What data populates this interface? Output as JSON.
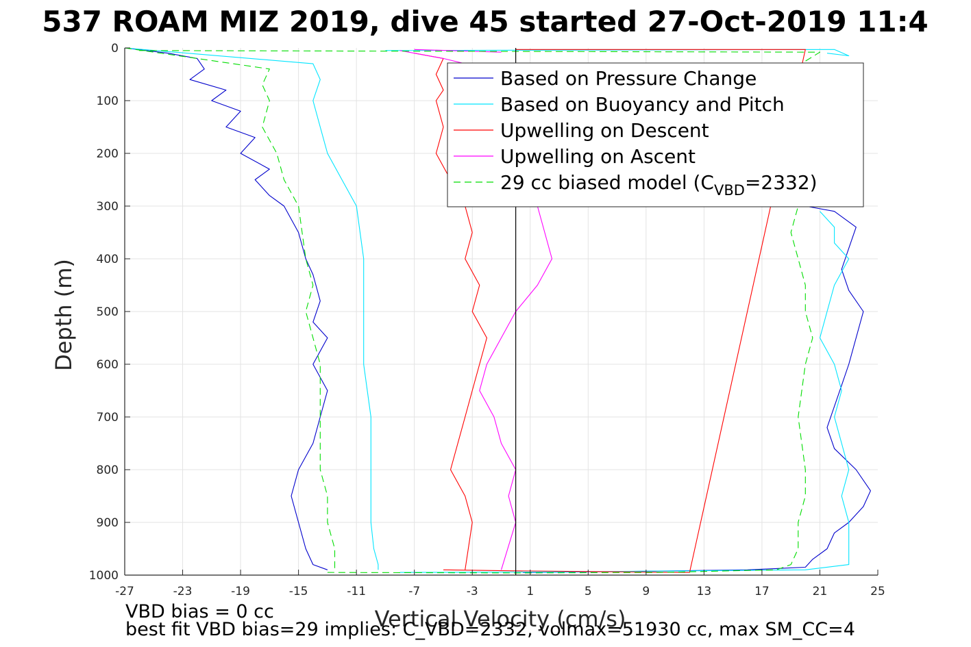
{
  "chart_data": {
    "type": "line",
    "title": "537 ROAM MIZ 2019, dive 45 started 27-Oct-2019 11:4",
    "xlabel": "Vertical Velocity (cm/s)",
    "ylabel": "Depth (m)",
    "xlim": [
      -27,
      25
    ],
    "ylim": [
      0,
      1000
    ],
    "y_reversed": true,
    "grid": true,
    "legend_position": "top-right",
    "x_ticks": [
      "-27",
      "-23",
      "-19",
      "-15",
      "-11",
      "-7",
      "-3",
      "1",
      "5",
      "9",
      "13",
      "17",
      "21",
      "25"
    ],
    "y_ticks": [
      "0",
      "100",
      "200",
      "300",
      "400",
      "500",
      "600",
      "700",
      "800",
      "900",
      "1000"
    ],
    "legend": [
      {
        "label": "Based on Pressure Change",
        "color": "#0000cc",
        "style": "solid"
      },
      {
        "label": "Based on Buoyancy and Pitch",
        "color": "#00e5ff",
        "style": "solid"
      },
      {
        "label": "Upwelling on Descent",
        "color": "#ff0000",
        "style": "solid"
      },
      {
        "label": "Upwelling on Ascent",
        "color": "#ff00ff",
        "style": "solid"
      },
      {
        "label": "29 cc biased model (C",
        "sub": "VBD",
        "suffix": "=2332)",
        "color": "#00dd00",
        "style": "dashed"
      }
    ],
    "series": [
      {
        "color": "#0000cc",
        "x": [
          -27,
          -24,
          -22,
          -21.5,
          -22.5,
          -20,
          -21,
          -19,
          -20,
          -18,
          -19,
          -17,
          -18,
          -17,
          -16,
          -15,
          -14.5,
          -14,
          -13.5,
          -14,
          -13,
          -14,
          -13,
          -13.5,
          -14,
          -15,
          -15.5,
          -15,
          -14.5,
          -14,
          -13
        ],
        "y": [
          0,
          10,
          20,
          40,
          60,
          80,
          100,
          120,
          150,
          170,
          200,
          230,
          250,
          280,
          300,
          350,
          400,
          430,
          480,
          520,
          550,
          600,
          650,
          700,
          750,
          800,
          850,
          900,
          950,
          980,
          990
        ]
      },
      {
        "color": "#0000cc",
        "x": [
          0.5,
          8,
          16,
          20,
          20.5,
          21.5,
          22,
          23,
          24,
          24.5,
          23.5,
          22,
          21.5,
          22,
          22.5,
          23,
          23.5,
          24,
          23,
          22.5,
          23,
          23.5,
          22,
          20
        ],
        "y": [
          995,
          993,
          990,
          985,
          970,
          950,
          920,
          900,
          870,
          840,
          800,
          760,
          720,
          680,
          640,
          600,
          550,
          500,
          460,
          420,
          380,
          340,
          310,
          300
        ]
      },
      {
        "color": "#00e5ff",
        "x": [
          -27,
          -14,
          -13.5,
          -14,
          -13.5,
          -13,
          -12,
          -11,
          -10.5,
          -10.5,
          -10.5,
          -10,
          -10,
          -10,
          -9.8,
          -9.5,
          -9.5
        ],
        "y": [
          0,
          30,
          60,
          100,
          150,
          200,
          250,
          300,
          400,
          500,
          600,
          700,
          800,
          900,
          950,
          980,
          990
        ]
      },
      {
        "color": "#00e5ff",
        "x": [
          -8,
          2,
          12,
          20,
          23,
          23,
          23,
          22.5,
          23,
          22.5,
          22,
          22.5,
          22,
          21,
          21.5,
          22,
          23,
          22,
          22,
          21
        ],
        "y": [
          995,
          994,
          992,
          990,
          980,
          950,
          900,
          850,
          800,
          750,
          700,
          650,
          600,
          550,
          500,
          450,
          400,
          370,
          340,
          310
        ]
      },
      {
        "color": "#00e5ff",
        "x": [
          -9,
          22,
          23,
          21.5
        ],
        "y": [
          5,
          3,
          15,
          10
        ]
      },
      {
        "color": "#ff0000",
        "x": [
          -7,
          -5,
          -5.5,
          -5,
          -5.5,
          -5,
          -5.5,
          -4.5,
          -3.5,
          -3,
          -3.5,
          -2.5,
          -3,
          -2,
          -2.5,
          -3,
          -3.5,
          -4,
          -4.5,
          -3.5,
          -3,
          -3.5
        ],
        "y": [
          10,
          20,
          50,
          80,
          100,
          150,
          200,
          250,
          300,
          350,
          400,
          450,
          500,
          550,
          600,
          650,
          700,
          750,
          800,
          850,
          900,
          990
        ]
      },
      {
        "color": "#ff0000",
        "x": [
          -5,
          0,
          12,
          20,
          0
        ],
        "y": [
          990,
          992,
          995,
          3,
          3
        ]
      },
      {
        "color": "#ff00ff",
        "x": [
          -8,
          -5,
          -2,
          0,
          1,
          1.5,
          2,
          2.5,
          1.5,
          0,
          -1,
          -2,
          -2.5,
          -1.5,
          -1,
          0,
          -0.5,
          0,
          -1
        ],
        "y": [
          5,
          20,
          40,
          100,
          200,
          300,
          350,
          400,
          450,
          500,
          550,
          600,
          650,
          700,
          750,
          800,
          850,
          900,
          990
        ]
      },
      {
        "color": "#ff00ff",
        "x": [
          -7,
          -1
        ],
        "y": [
          3,
          8
        ]
      },
      {
        "color": "#00dd00",
        "dash": true,
        "x": [
          -27,
          -17,
          -17.5,
          -17,
          -17.5,
          -16.5,
          -16,
          -15,
          -14.5,
          -14,
          -14.5,
          -14,
          -13.5,
          -13.5,
          -13.5,
          -13,
          -13,
          -12.5,
          -12.5
        ],
        "y": [
          0,
          40,
          70,
          100,
          150,
          200,
          250,
          300,
          400,
          450,
          500,
          550,
          600,
          700,
          800,
          850,
          900,
          950,
          990
        ]
      },
      {
        "color": "#00dd00",
        "dash": true,
        "x": [
          -13,
          0,
          10,
          18,
          19,
          19.5,
          19.5,
          20,
          20,
          19.5,
          20,
          20.5,
          20,
          20,
          19.5,
          19,
          19.5
        ],
        "y": [
          995,
          996,
          995,
          990,
          980,
          950,
          900,
          850,
          800,
          700,
          600,
          550,
          500,
          450,
          400,
          350,
          300
        ]
      },
      {
        "color": "#00dd00",
        "dash": true,
        "x": [
          -26,
          21,
          20
        ],
        "y": [
          5,
          8,
          25
        ]
      }
    ]
  },
  "notes": {
    "line1": "VBD bias = 0 cc",
    "line2": "best fit VBD bias=29 implies: C_VBD=2332, volmax=51930 cc, max SM_CC=4"
  }
}
